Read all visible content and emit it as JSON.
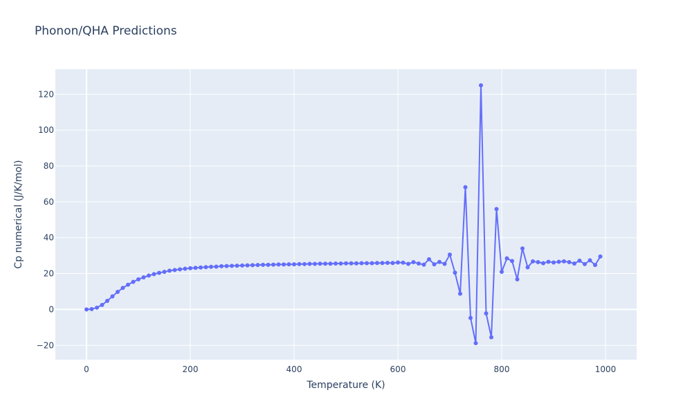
{
  "chart_data": {
    "type": "line",
    "title": "Phonon/QHA Predictions",
    "xlabel": "Temperature (K)",
    "ylabel": "Cp numerical (J/K/mol)",
    "xlim": [
      -60,
      1060
    ],
    "ylim": [
      -28,
      134
    ],
    "xticks": [
      0,
      200,
      400,
      600,
      800,
      1000
    ],
    "yticks": [
      -20,
      0,
      20,
      40,
      60,
      80,
      100,
      120
    ],
    "ytick_labels": [
      "−20",
      "0",
      "20",
      "40",
      "60",
      "80",
      "100",
      "120"
    ],
    "grid": true,
    "plot_bg": "#e5ecf6",
    "series": [
      {
        "color": "#636efa",
        "x": [
          0,
          10,
          20,
          30,
          40,
          50,
          60,
          70,
          80,
          90,
          100,
          110,
          120,
          130,
          140,
          150,
          160,
          170,
          180,
          190,
          200,
          210,
          220,
          230,
          240,
          250,
          260,
          270,
          280,
          290,
          300,
          310,
          320,
          330,
          340,
          350,
          360,
          370,
          380,
          390,
          400,
          410,
          420,
          430,
          440,
          450,
          460,
          470,
          480,
          490,
          500,
          510,
          520,
          530,
          540,
          550,
          560,
          570,
          580,
          590,
          600,
          610,
          620,
          630,
          640,
          650,
          660,
          670,
          680,
          690,
          700,
          710,
          720,
          730,
          740,
          750,
          760,
          770,
          780,
          790,
          800,
          810,
          820,
          830,
          840,
          850,
          860,
          870,
          880,
          890,
          900,
          910,
          920,
          930,
          940,
          950,
          960,
          970,
          980,
          990
        ],
        "y": [
          0,
          0.2,
          1.0,
          2.5,
          4.8,
          7.3,
          9.8,
          12.0,
          13.8,
          15.4,
          16.8,
          17.9,
          18.9,
          19.7,
          20.4,
          21.0,
          21.6,
          22.0,
          22.4,
          22.7,
          23.0,
          23.2,
          23.4,
          23.6,
          23.8,
          23.9,
          24.1,
          24.2,
          24.3,
          24.4,
          24.5,
          24.6,
          24.7,
          24.8,
          24.9,
          24.9,
          25.0,
          25.1,
          25.1,
          25.2,
          25.2,
          25.3,
          25.3,
          25.4,
          25.4,
          25.5,
          25.5,
          25.5,
          25.6,
          25.6,
          25.7,
          25.7,
          25.7,
          25.8,
          25.8,
          25.8,
          25.9,
          25.9,
          26.0,
          25.9,
          26.2,
          26.1,
          25.4,
          26.4,
          25.6,
          25.0,
          28.0,
          25.2,
          26.5,
          25.4,
          30.6,
          20.5,
          8.8,
          68.2,
          -4.7,
          -18.8,
          125,
          -2.2,
          -15.5,
          56.0,
          21.0,
          28.5,
          27.0,
          16.8,
          34.0,
          23.5,
          26.8,
          26.4,
          25.8,
          26.6,
          26.2,
          26.6,
          26.8,
          26.4,
          25.6,
          27.2,
          25.3,
          27.4,
          24.8,
          29.5
        ]
      }
    ]
  }
}
